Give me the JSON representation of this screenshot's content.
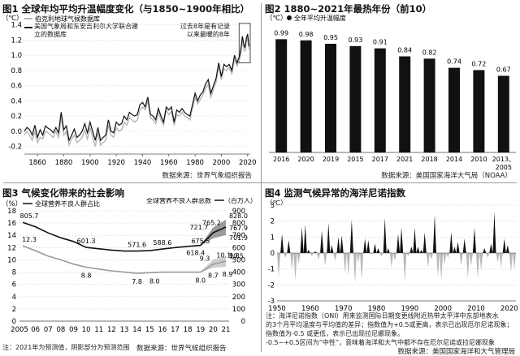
{
  "charts": [
    {
      "title": "图1 全球年均平均升温幅度变化（与1850~1900年相比）",
      "unit": "（℃）",
      "legend": [
        "伯克利地球气候数据库",
        "美国气象局和东安吉利尔大学联合建立的数据库"
      ],
      "annotation": "过去8年是有记录以来最暖的8年",
      "source": "数据来源：世界气象组织报告",
      "chart_data": {
        "type": "line",
        "title": "图1 全球年均平均升温幅度变化（与1850~1900年相比）",
        "ylabel": "（℃）",
        "xlim": [
          1850,
          2022
        ],
        "ylim": [
          -0.3,
          1.45
        ],
        "y_ticks": [
          -0.2,
          0,
          0.2,
          0.4,
          0.6,
          0.8,
          1.0,
          1.2,
          1.4
        ],
        "x_ticks": [
          1860,
          1880,
          1900,
          1920,
          1940,
          1960,
          1980,
          2000,
          2020
        ],
        "series": [
          {
            "name": "伯克利地球气候数据库",
            "color": "#111111",
            "x": [
              1850,
              1852,
              1854,
              1856,
              1858,
              1860,
              1862,
              1864,
              1866,
              1868,
              1870,
              1872,
              1874,
              1876,
              1878,
              1880,
              1882,
              1884,
              1886,
              1888,
              1890,
              1892,
              1894,
              1896,
              1898,
              1900,
              1902,
              1904,
              1906,
              1908,
              1910,
              1912,
              1914,
              1916,
              1918,
              1920,
              1922,
              1924,
              1926,
              1928,
              1930,
              1932,
              1934,
              1936,
              1938,
              1940,
              1942,
              1944,
              1946,
              1948,
              1950,
              1952,
              1954,
              1956,
              1958,
              1960,
              1962,
              1964,
              1966,
              1968,
              1970,
              1972,
              1974,
              1976,
              1978,
              1980,
              1982,
              1984,
              1986,
              1988,
              1990,
              1992,
              1994,
              1996,
              1998,
              2000,
              2002,
              2004,
              2006,
              2008,
              2010,
              2012,
              2014,
              2015,
              2016,
              2017,
              2018,
              2019,
              2020,
              2021
            ],
            "values": [
              0.0,
              0.05,
              0.02,
              -0.05,
              0.08,
              -0.08,
              0.02,
              -0.05,
              0.07,
              0.04,
              0.02,
              -0.02,
              0.05,
              -0.02,
              0.25,
              0.02,
              0.07,
              -0.12,
              -0.05,
              0.03,
              -0.08,
              -0.05,
              0.0,
              0.1,
              -0.02,
              0.12,
              0.0,
              -0.12,
              0.05,
              -0.12,
              -0.08,
              -0.05,
              0.15,
              0.0,
              -0.02,
              0.12,
              0.08,
              0.1,
              0.2,
              0.15,
              0.25,
              0.22,
              0.2,
              0.22,
              0.35,
              0.38,
              0.32,
              0.45,
              0.22,
              0.2,
              0.15,
              0.3,
              0.2,
              0.12,
              0.32,
              0.28,
              0.32,
              0.12,
              0.28,
              0.25,
              0.3,
              0.25,
              0.22,
              0.2,
              0.35,
              0.5,
              0.4,
              0.48,
              0.52,
              0.62,
              0.68,
              0.5,
              0.6,
              0.7,
              0.9,
              0.72,
              0.88,
              0.85,
              0.88,
              0.8,
              1.0,
              0.9,
              1.0,
              1.1,
              1.25,
              1.15,
              1.1,
              1.22,
              1.28,
              1.12
            ]
          },
          {
            "name": "美国气象局和东安吉利尔大学联合建立的数据库",
            "color": "#b5b5b5",
            "x": [
              1850,
              1852,
              1854,
              1856,
              1858,
              1860,
              1862,
              1864,
              1866,
              1868,
              1870,
              1872,
              1874,
              1876,
              1878,
              1880,
              1882,
              1884,
              1886,
              1888,
              1890,
              1892,
              1894,
              1896,
              1898,
              1900,
              1902,
              1904,
              1906,
              1908,
              1910,
              1912,
              1914,
              1916,
              1918,
              1920,
              1922,
              1924,
              1926,
              1928,
              1930,
              1932,
              1934,
              1936,
              1938,
              1940,
              1942,
              1944,
              1946,
              1948,
              1950,
              1952,
              1954,
              1956,
              1958,
              1960,
              1962,
              1964,
              1966,
              1968,
              1970,
              1972,
              1974,
              1976,
              1978,
              1980,
              1982,
              1984,
              1986,
              1988,
              1990,
              1992,
              1994,
              1996,
              1998,
              2000,
              2002,
              2004,
              2006,
              2008,
              2010,
              2012,
              2014,
              2015,
              2016,
              2017,
              2018,
              2019,
              2020,
              2021
            ],
            "values": [
              -0.05,
              0.0,
              -0.05,
              -0.12,
              0.0,
              -0.15,
              -0.08,
              -0.1,
              0.0,
              -0.02,
              -0.05,
              -0.08,
              0.0,
              -0.08,
              0.18,
              -0.05,
              0.0,
              -0.18,
              -0.1,
              -0.05,
              -0.15,
              -0.12,
              -0.08,
              0.02,
              -0.1,
              0.05,
              -0.08,
              -0.2,
              -0.02,
              -0.18,
              -0.15,
              -0.12,
              0.08,
              -0.05,
              -0.08,
              0.05,
              0.0,
              0.02,
              0.12,
              0.08,
              0.18,
              0.15,
              0.12,
              0.15,
              0.28,
              0.32,
              0.28,
              0.4,
              0.18,
              0.15,
              0.1,
              0.25,
              0.15,
              0.08,
              0.28,
              0.22,
              0.26,
              0.08,
              0.22,
              0.2,
              0.25,
              0.2,
              0.18,
              0.15,
              0.3,
              0.45,
              0.36,
              0.42,
              0.48,
              0.56,
              0.62,
              0.45,
              0.55,
              0.65,
              0.85,
              0.68,
              0.82,
              0.8,
              0.84,
              0.76,
              0.95,
              0.86,
              0.96,
              1.05,
              1.2,
              1.1,
              1.05,
              1.18,
              1.22,
              1.08
            ]
          }
        ]
      }
    },
    {
      "title": "图2 1880~2021年最热年份（前10）",
      "unit": "（℃）",
      "legend": [
        "全年平均升温幅度"
      ],
      "source": "数据来源：美国国家海洋大气局（NOAA）",
      "chart_data": {
        "type": "bar",
        "title": "图2 1880~2021年最热年份（前10）",
        "ylabel": "（℃）",
        "ylim": [
          0,
          1.12
        ],
        "categories": [
          "2016",
          "2020",
          "2019",
          "2015",
          "2017",
          "2021",
          "2018",
          "2014",
          "2010",
          "2013、2005"
        ],
        "values": [
          0.99,
          0.98,
          0.95,
          0.93,
          0.91,
          0.84,
          0.82,
          0.74,
          0.72,
          0.67
        ],
        "data_labels": [
          "0.99",
          "0.98",
          "0.95",
          "0.93",
          "0.91",
          "0.84",
          "0.82",
          "0.74",
          "0.72",
          "0.67"
        ],
        "color": "#111111"
      }
    },
    {
      "title": "图3 气候变化带来的社会影响",
      "legend_left": "全球营养不良人群占比",
      "legend_right": "全球营养不良人群总数",
      "left_unit": "（%）",
      "right_unit": "（百万人）",
      "note": "注：2021年为预测值，阴影部分为预测范围",
      "source": "数据来源：世界气候组织报告",
      "chart_data": {
        "type": "line",
        "title": "图3 气候变化带来的社会影响",
        "categories": [
          "2005",
          "06",
          "07",
          "08",
          "09",
          "10",
          "11",
          "12",
          "13",
          "14",
          "15",
          "16",
          "17",
          "18",
          "19",
          "20",
          "21"
        ],
        "y_left": {
          "unit": "（%）",
          "ylim": [
            0,
            18
          ],
          "ticks": [
            0,
            2,
            4,
            6,
            8,
            10,
            12,
            14,
            16,
            18
          ]
        },
        "y_right": {
          "unit": "（百万人）",
          "ylim": [
            0,
            900
          ],
          "ticks": [
            0,
            100,
            200,
            300,
            400,
            500,
            600,
            700,
            800,
            900
          ]
        },
        "series": [
          {
            "name": "全球营养不良人群总数",
            "axis": "right",
            "color": "#111111",
            "values": [
              805.7,
              770,
              720,
              680,
              650,
              601.3,
              590,
              580,
              572,
              571.6,
              575,
              588.6,
              600,
              610,
              618.4,
              721.7,
              767.9
            ],
            "labels": {
              "0": "805.7",
              "5": "601.3",
              "9": "571.6",
              "11": "588.6",
              "14": "618.4",
              "15": "721.7",
              "16": "767.9"
            },
            "forecast_range": {
              "2020": [
                675.5,
                765.2
              ],
              "2021": [
                701.9,
                828.0
              ]
            },
            "forecast_labels": [
              "765.2",
              "828.0",
              "675.5",
              "701.9"
            ]
          },
          {
            "name": "全球营养不良人群占比",
            "axis": "left",
            "color": "#9a9a9a",
            "values": [
              12.3,
              11.5,
              10.6,
              10.0,
              9.3,
              8.8,
              8.5,
              8.2,
              8.0,
              7.8,
              7.9,
              8.0,
              8.0,
              8.0,
              8.0,
              9.3,
              9.8
            ],
            "labels": {
              "0": "12.3",
              "5": "8.8",
              "9": "7.8",
              "10": "8.0",
              "14": "8.0",
              "15": "9.3",
              "16": "9.8"
            },
            "forecast_range": {
              "2020": [
                8.7,
                10.1
              ],
              "2021": [
                8.9,
                10.5
              ]
            },
            "forecast_labels": [
              "10.1",
              "10.5",
              "8.7",
              "8.9"
            ]
          }
        ]
      }
    },
    {
      "title": "图4 监测气候异常的海洋尼诺指数",
      "unit": "（℃）",
      "note_lines": [
        "注：海洋尼诺指数（ONI）用来监测国际日期变更线附近热带太平洋中东部地表水",
        "的3个月平均温度与平均值的差异；指数值为+0.5或更高，表示已出现厄尔尼诺现象；",
        "指数值为-0.5 或更低，表示已出现拉尼娜现象。",
        "-0.5~+0.5区间为“中性”，意味着海洋和大气中都不存在厄尔尼诺或拉尼娜现象"
      ],
      "source": "数据来源：美国国家海洋和大气管理局",
      "chart_data": {
        "type": "area",
        "title": "图4 监测气候异常的海洋尼诺指数",
        "ylabel": "（℃）",
        "xlim": [
          1950,
          2022
        ],
        "ylim": [
          -3,
          3
        ],
        "y_ticks": [
          -3,
          -2,
          -1,
          0,
          1,
          2,
          3
        ],
        "x_ticks": [
          1950,
          1960,
          1970,
          1980,
          1990,
          2000,
          2010,
          2020
        ],
        "positive_color": "#111111",
        "negative_color": "#b8b8b8",
        "x": [
          1950,
          1951,
          1952,
          1953,
          1954,
          1955,
          1956,
          1957,
          1958,
          1959,
          1960,
          1961,
          1962,
          1963,
          1964,
          1965,
          1966,
          1967,
          1968,
          1969,
          1970,
          1971,
          1972,
          1973,
          1974,
          1975,
          1976,
          1977,
          1978,
          1979,
          1980,
          1981,
          1982,
          1983,
          1984,
          1985,
          1986,
          1987,
          1988,
          1989,
          1990,
          1991,
          1992,
          1993,
          1994,
          1995,
          1996,
          1997,
          1998,
          1999,
          2000,
          2001,
          2002,
          2003,
          2004,
          2005,
          2006,
          2007,
          2008,
          2009,
          2010,
          2011,
          2012,
          2013,
          2014,
          2015,
          2016,
          2017,
          2018,
          2019,
          2020,
          2021
        ],
        "values": [
          -1.5,
          1.2,
          -0.3,
          0.8,
          -1.0,
          -1.7,
          -0.7,
          1.6,
          1.8,
          0.2,
          -0.2,
          0.1,
          -0.4,
          1.4,
          -0.8,
          1.9,
          0.5,
          -0.5,
          1.0,
          1.1,
          -1.3,
          -1.4,
          2.1,
          -1.9,
          -0.6,
          -1.7,
          0.9,
          0.8,
          -0.1,
          0.6,
          0.3,
          -0.2,
          2.2,
          0.3,
          -0.9,
          -0.5,
          1.2,
          1.6,
          -1.8,
          -0.2,
          0.4,
          1.6,
          0.4,
          0.2,
          1.3,
          -0.9,
          -0.4,
          2.4,
          -1.5,
          -1.7,
          -0.7,
          -0.3,
          1.3,
          0.4,
          0.7,
          -0.8,
          0.9,
          -1.6,
          -0.8,
          1.6,
          -1.6,
          -1.1,
          0.3,
          -0.3,
          0.6,
          2.6,
          -0.6,
          -0.9,
          0.9,
          0.5,
          -1.2,
          -1.0
        ]
      }
    }
  ]
}
